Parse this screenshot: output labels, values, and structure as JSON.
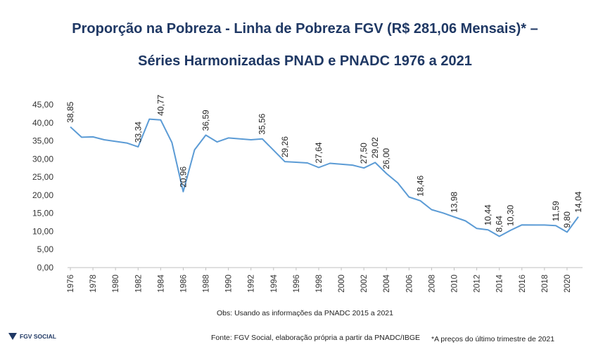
{
  "header": {
    "title_line1": "Proporção na Pobreza - Linha de Pobreza FGV (R$ 281,06 Mensais)* –",
    "title_line2": "Séries Harmonizadas PNAD e PNADC 1976 a 2021"
  },
  "footer": {
    "obs": "Obs: Usando as informações da PNADC 2015 a 2021",
    "fonte": "Fonte: FGV Social, elaboração própria a partir da PNADC/IBGE",
    "nota": "*A preços do último trimestre de 2021",
    "logo_text": "FGV SOCIAL"
  },
  "colors": {
    "line": "#5b9bd5",
    "title": "#1f3864",
    "axis": "#bfbfbf"
  },
  "chart_data": {
    "type": "line",
    "title": "Proporção na Pobreza - Linha de Pobreza FGV (R$ 281,06 Mensais)* – Séries Harmonizadas PNAD e PNADC 1976 a 2021",
    "xlabel": "",
    "ylabel": "",
    "ylim": [
      0,
      45
    ],
    "yticks": [
      "0,00",
      "5,00",
      "10,00",
      "15,00",
      "20,00",
      "25,00",
      "30,00",
      "35,00",
      "40,00",
      "45,00"
    ],
    "xticks": [
      "1976",
      "1978",
      "1980",
      "1982",
      "1984",
      "1986",
      "1988",
      "1990",
      "1992",
      "1994",
      "1996",
      "1998",
      "2000",
      "2002",
      "2004",
      "2006",
      "2008",
      "2010",
      "2012",
      "2014",
      "2016",
      "2018",
      "2020"
    ],
    "grid": false,
    "series": [
      {
        "name": "Proporção na Pobreza",
        "points": [
          {
            "x": 1976,
            "y": 38.85,
            "label": "38,85"
          },
          {
            "x": 1977,
            "y": 36.0
          },
          {
            "x": 1978,
            "y": 36.1
          },
          {
            "x": 1979,
            "y": 35.3
          },
          {
            "x": 1981,
            "y": 34.4
          },
          {
            "x": 1982,
            "y": 33.34,
            "label": "33,34"
          },
          {
            "x": 1983,
            "y": 41.0
          },
          {
            "x": 1984,
            "y": 40.77,
            "label": "40,77"
          },
          {
            "x": 1985,
            "y": 34.5
          },
          {
            "x": 1986,
            "y": 20.96,
            "label": "20,96"
          },
          {
            "x": 1987,
            "y": 32.5
          },
          {
            "x": 1988,
            "y": 36.59,
            "label": "36,59"
          },
          {
            "x": 1989,
            "y": 34.7
          },
          {
            "x": 1990,
            "y": 35.8
          },
          {
            "x": 1992,
            "y": 35.3
          },
          {
            "x": 1993,
            "y": 35.56,
            "label": "35,56"
          },
          {
            "x": 1995,
            "y": 29.26,
            "label": "29,26"
          },
          {
            "x": 1996,
            "y": 29.1
          },
          {
            "x": 1997,
            "y": 28.9
          },
          {
            "x": 1998,
            "y": 27.64,
            "label": "27,64"
          },
          {
            "x": 1999,
            "y": 28.8
          },
          {
            "x": 2001,
            "y": 28.3
          },
          {
            "x": 2002,
            "y": 27.5,
            "label": "27,50"
          },
          {
            "x": 2003,
            "y": 29.02,
            "label": "29,02"
          },
          {
            "x": 2004,
            "y": 26.0,
            "label": "26,00"
          },
          {
            "x": 2005,
            "y": 23.4
          },
          {
            "x": 2006,
            "y": 19.5
          },
          {
            "x": 2007,
            "y": 18.46,
            "label": "18,46"
          },
          {
            "x": 2008,
            "y": 16.0
          },
          {
            "x": 2009,
            "y": 15.1
          },
          {
            "x": 2011,
            "y": 12.9
          },
          {
            "x": 2012,
            "y": 10.8
          },
          {
            "x": 2013,
            "y": 10.44,
            "label": "10,44"
          },
          {
            "x": 2014,
            "y": 8.64,
            "label": "8,64"
          },
          {
            "x": 2015,
            "y": 10.3,
            "label": "10,30"
          },
          {
            "x": 2016,
            "y": 11.8
          },
          {
            "x": 2018,
            "y": 11.75
          },
          {
            "x": 2019,
            "y": 11.59,
            "label": "11,59"
          },
          {
            "x": 2020,
            "y": 9.8,
            "label": "9,80"
          },
          {
            "x": 2021,
            "y": 14.04,
            "label": "14,04"
          }
        ],
        "extra_labels": [
          {
            "x": 2010,
            "y": 13.98,
            "label": "13,98"
          }
        ]
      }
    ]
  }
}
